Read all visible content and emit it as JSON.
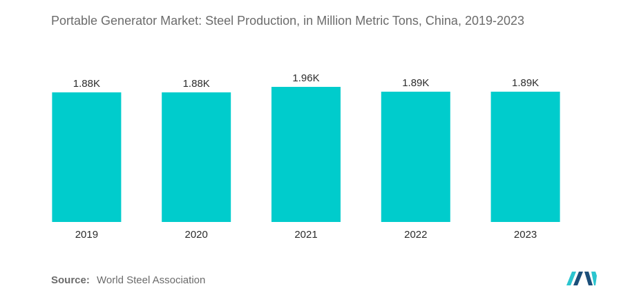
{
  "title": "Portable Generator Market: Steel Production, in Million Metric Tons, China, 2019-2023",
  "source": {
    "label": "Source:",
    "text": "World Steel Association"
  },
  "colors": {
    "bar": "#00CCCC",
    "logo_dark": "#1c4f7a",
    "logo_light": "#2bc5cf"
  },
  "logo_icon": "mordor-intelligence-logo-icon",
  "chart_data": {
    "type": "bar",
    "title": "Portable Generator Market: Steel Production, in Million Metric Tons, China, 2019-2023",
    "categories": [
      "2019",
      "2020",
      "2021",
      "2022",
      "2023"
    ],
    "values": [
      1880,
      1880,
      1960,
      1890,
      1890
    ],
    "data_labels": [
      "1.88K",
      "1.88K",
      "1.96K",
      "1.89K",
      "1.89K"
    ],
    "xlabel": "",
    "ylabel": "",
    "ylim": [
      0,
      1960
    ],
    "grid": false,
    "legend": "none"
  }
}
